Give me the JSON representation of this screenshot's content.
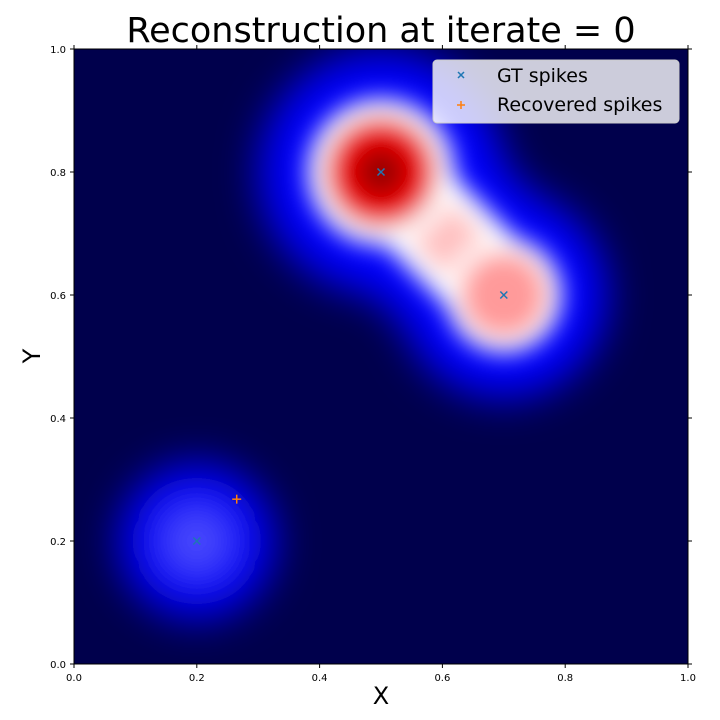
{
  "chart_data": {
    "type": "heatmap",
    "title": "Reconstruction at iterate = 0",
    "xlabel": "X",
    "ylabel": "Y",
    "xlim": [
      0.0,
      1.0
    ],
    "ylim": [
      0.0,
      1.0
    ],
    "xticks": [
      "0.0",
      "0.2",
      "0.4",
      "0.6",
      "0.8",
      "1.0"
    ],
    "yticks": [
      "0.0",
      "0.2",
      "0.4",
      "0.6",
      "0.8",
      "1.0"
    ],
    "colormap": "seismic",
    "legend_position": "top-right",
    "grid": false,
    "field_peaks": [
      {
        "x": 0.5,
        "y": 0.8,
        "value": 1.0
      },
      {
        "x": 0.7,
        "y": 0.6,
        "value": 0.72
      },
      {
        "x": 0.2,
        "y": 0.2,
        "value": 0.35
      }
    ],
    "series": [
      {
        "name": "GT spikes",
        "marker": "x",
        "color": "#1f77b4",
        "points": [
          {
            "x": 0.5,
            "y": 0.8
          },
          {
            "x": 0.7,
            "y": 0.6
          },
          {
            "x": 0.2,
            "y": 0.2
          }
        ]
      },
      {
        "name": "Recovered spikes",
        "marker": "+",
        "color": "#ff7f0e",
        "points": [
          {
            "x": 0.265,
            "y": 0.268
          }
        ]
      }
    ]
  }
}
